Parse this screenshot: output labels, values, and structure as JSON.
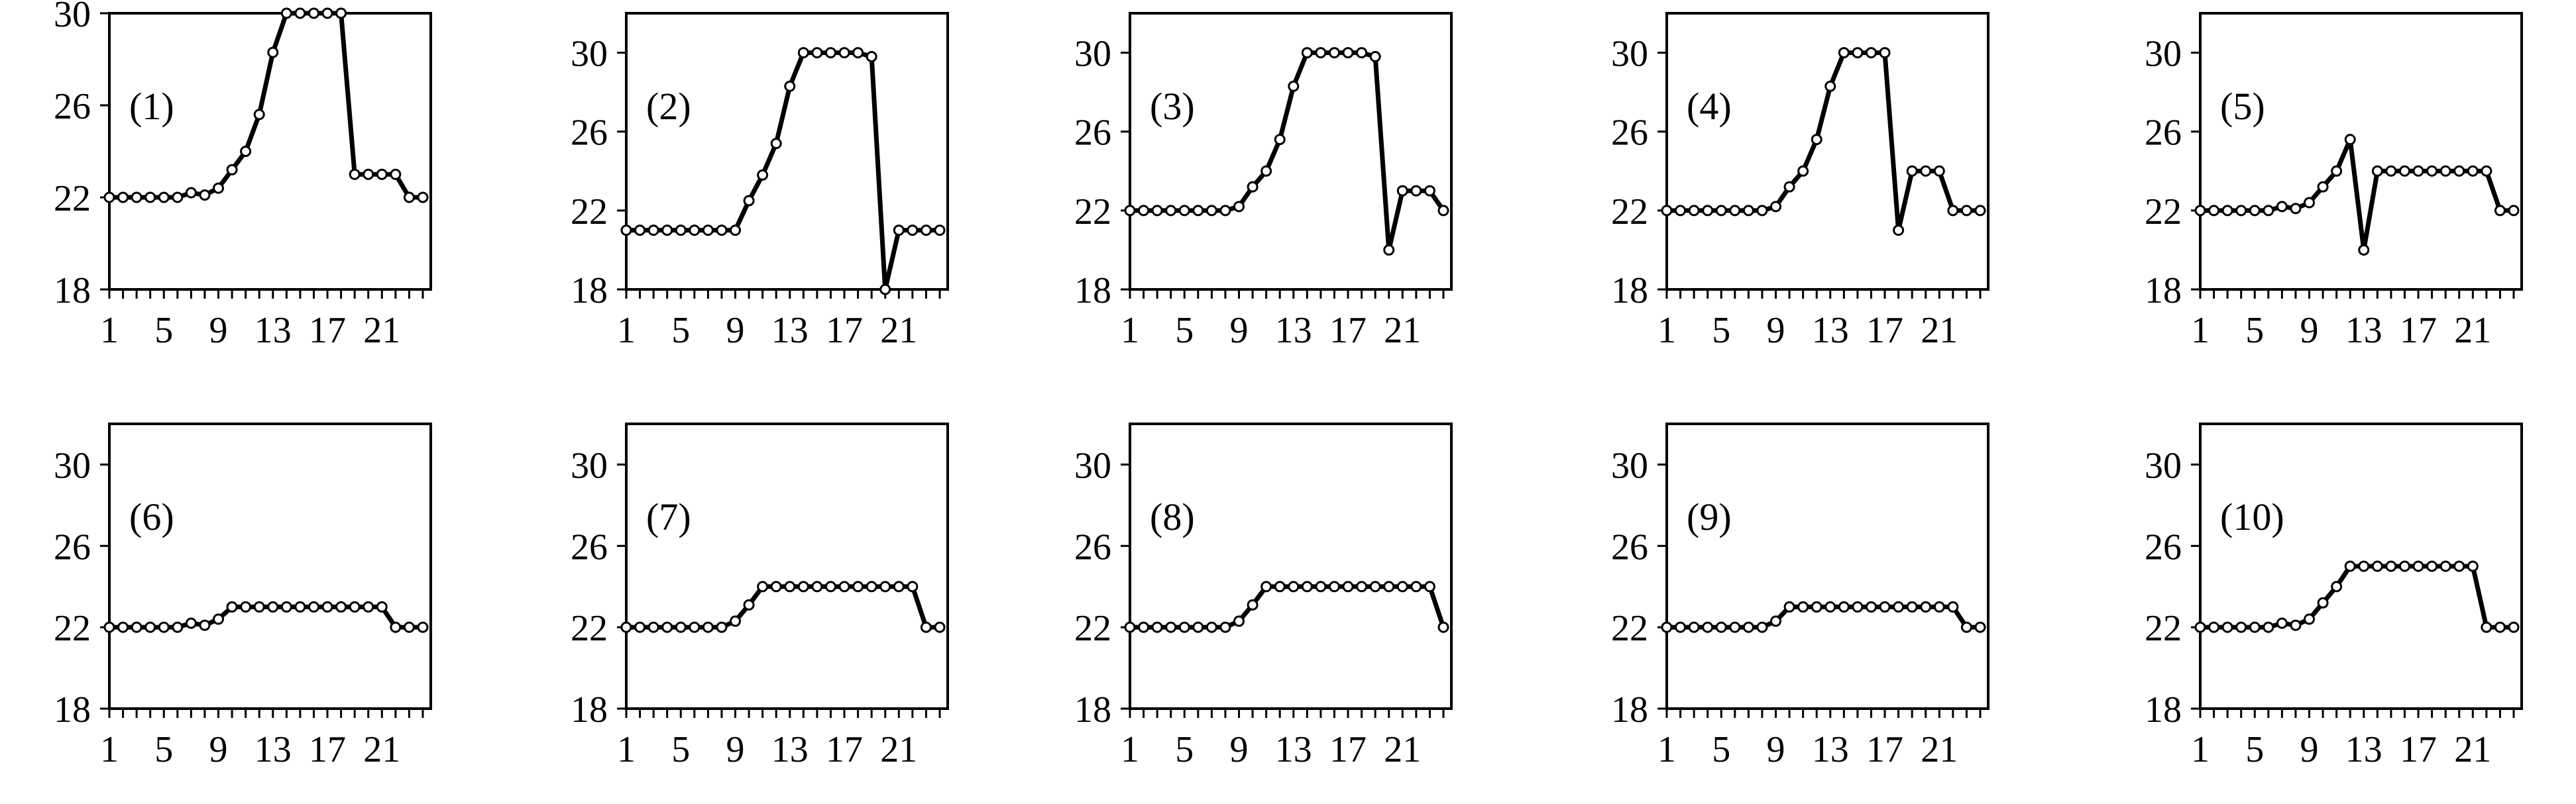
{
  "chart_data": [
    {
      "type": "line",
      "panel_label": "(1)",
      "x": [
        1,
        2,
        3,
        4,
        5,
        6,
        7,
        8,
        9,
        10,
        11,
        12,
        13,
        14,
        15,
        16,
        17,
        18,
        19,
        20,
        21,
        22,
        23,
        24
      ],
      "series": [
        {
          "values": [
            22,
            22,
            22,
            22,
            22,
            22,
            22.2,
            22.1,
            22.4,
            23.2,
            24,
            25.6,
            28.3,
            30,
            30,
            30,
            30,
            30,
            23,
            23,
            23,
            23,
            22,
            22
          ]
        }
      ],
      "ylim": [
        18,
        30
      ],
      "yticks": [
        18,
        22,
        26,
        30
      ],
      "xticks": [
        1,
        5,
        9,
        13,
        17,
        21
      ],
      "xlim": [
        1,
        24
      ]
    },
    {
      "type": "line",
      "panel_label": "(2)",
      "x": [
        1,
        2,
        3,
        4,
        5,
        6,
        7,
        8,
        9,
        10,
        11,
        12,
        13,
        14,
        15,
        16,
        17,
        18,
        19,
        20,
        21,
        22,
        23,
        24
      ],
      "series": [
        {
          "values": [
            21,
            21,
            21,
            21,
            21,
            21,
            21,
            21,
            21,
            22.5,
            23.8,
            25.4,
            28.3,
            30,
            30,
            30,
            30,
            30,
            29.8,
            18,
            21,
            21,
            21,
            21
          ]
        }
      ],
      "ylim": [
        18,
        32
      ],
      "yticks": [
        18,
        22,
        26,
        30
      ],
      "xticks": [
        1,
        5,
        9,
        13,
        17,
        21
      ],
      "xlim": [
        1,
        24
      ]
    },
    {
      "type": "line",
      "panel_label": "(3)",
      "x": [
        1,
        2,
        3,
        4,
        5,
        6,
        7,
        8,
        9,
        10,
        11,
        12,
        13,
        14,
        15,
        16,
        17,
        18,
        19,
        20,
        21,
        22,
        23,
        24
      ],
      "series": [
        {
          "values": [
            22,
            22,
            22,
            22,
            22,
            22,
            22,
            22,
            22.2,
            23.2,
            24,
            25.6,
            28.3,
            30,
            30,
            30,
            30,
            30,
            29.8,
            20,
            23,
            23,
            23,
            22
          ]
        }
      ],
      "ylim": [
        18,
        32
      ],
      "yticks": [
        18,
        22,
        26,
        30
      ],
      "xticks": [
        1,
        5,
        9,
        13,
        17,
        21
      ],
      "xlim": [
        1,
        24
      ]
    },
    {
      "type": "line",
      "panel_label": "(4)",
      "x": [
        1,
        2,
        3,
        4,
        5,
        6,
        7,
        8,
        9,
        10,
        11,
        12,
        13,
        14,
        15,
        16,
        17,
        18,
        19,
        20,
        21,
        22,
        23,
        24
      ],
      "series": [
        {
          "values": [
            22,
            22,
            22,
            22,
            22,
            22,
            22,
            22,
            22.2,
            23.2,
            24,
            25.6,
            28.3,
            30,
            30,
            30,
            30,
            21,
            24,
            24,
            24,
            22,
            22,
            22
          ]
        }
      ],
      "ylim": [
        18,
        32
      ],
      "yticks": [
        18,
        22,
        26,
        30
      ],
      "xticks": [
        1,
        5,
        9,
        13,
        17,
        21
      ],
      "xlim": [
        1,
        24
      ]
    },
    {
      "type": "line",
      "panel_label": "(5)",
      "x": [
        1,
        2,
        3,
        4,
        5,
        6,
        7,
        8,
        9,
        10,
        11,
        12,
        13,
        14,
        15,
        16,
        17,
        18,
        19,
        20,
        21,
        22,
        23,
        24
      ],
      "series": [
        {
          "values": [
            22,
            22,
            22,
            22,
            22,
            22,
            22.2,
            22.1,
            22.4,
            23.2,
            24,
            25.6,
            20,
            24,
            24,
            24,
            24,
            24,
            24,
            24,
            24,
            24,
            22,
            22
          ]
        }
      ],
      "ylim": [
        18,
        32
      ],
      "yticks": [
        18,
        22,
        26,
        30
      ],
      "xticks": [
        1,
        5,
        9,
        13,
        17,
        21
      ],
      "xlim": [
        1,
        24
      ]
    },
    {
      "type": "line",
      "panel_label": "(6)",
      "x": [
        1,
        2,
        3,
        4,
        5,
        6,
        7,
        8,
        9,
        10,
        11,
        12,
        13,
        14,
        15,
        16,
        17,
        18,
        19,
        20,
        21,
        22,
        23,
        24
      ],
      "series": [
        {
          "values": [
            22,
            22,
            22,
            22,
            22,
            22,
            22.2,
            22.1,
            22.4,
            23,
            23,
            23,
            23,
            23,
            23,
            23,
            23,
            23,
            23,
            23,
            23,
            22,
            22,
            22
          ]
        }
      ],
      "ylim": [
        18,
        32
      ],
      "yticks": [
        18,
        22,
        26,
        30
      ],
      "xticks": [
        1,
        5,
        9,
        13,
        17,
        21
      ],
      "xlim": [
        1,
        24
      ]
    },
    {
      "type": "line",
      "panel_label": "(7)",
      "x": [
        1,
        2,
        3,
        4,
        5,
        6,
        7,
        8,
        9,
        10,
        11,
        12,
        13,
        14,
        15,
        16,
        17,
        18,
        19,
        20,
        21,
        22,
        23,
        24
      ],
      "series": [
        {
          "values": [
            22,
            22,
            22,
            22,
            22,
            22,
            22,
            22,
            22.3,
            23.1,
            24,
            24,
            24,
            24,
            24,
            24,
            24,
            24,
            24,
            24,
            24,
            24,
            22,
            22
          ]
        }
      ],
      "ylim": [
        18,
        32
      ],
      "yticks": [
        18,
        22,
        26,
        30
      ],
      "xticks": [
        1,
        5,
        9,
        13,
        17,
        21
      ],
      "xlim": [
        1,
        24
      ]
    },
    {
      "type": "line",
      "panel_label": "(8)",
      "x": [
        1,
        2,
        3,
        4,
        5,
        6,
        7,
        8,
        9,
        10,
        11,
        12,
        13,
        14,
        15,
        16,
        17,
        18,
        19,
        20,
        21,
        22,
        23,
        24
      ],
      "series": [
        {
          "values": [
            22,
            22,
            22,
            22,
            22,
            22,
            22,
            22,
            22.3,
            23.1,
            24,
            24,
            24,
            24,
            24,
            24,
            24,
            24,
            24,
            24,
            24,
            24,
            24,
            22
          ]
        }
      ],
      "ylim": [
        18,
        32
      ],
      "yticks": [
        18,
        22,
        26,
        30
      ],
      "xticks": [
        1,
        5,
        9,
        13,
        17,
        21
      ],
      "xlim": [
        1,
        24
      ]
    },
    {
      "type": "line",
      "panel_label": "(9)",
      "x": [
        1,
        2,
        3,
        4,
        5,
        6,
        7,
        8,
        9,
        10,
        11,
        12,
        13,
        14,
        15,
        16,
        17,
        18,
        19,
        20,
        21,
        22,
        23,
        24
      ],
      "series": [
        {
          "values": [
            22,
            22,
            22,
            22,
            22,
            22,
            22,
            22,
            22.3,
            23,
            23,
            23,
            23,
            23,
            23,
            23,
            23,
            23,
            23,
            23,
            23,
            23,
            22,
            22
          ]
        }
      ],
      "ylim": [
        18,
        32
      ],
      "yticks": [
        18,
        22,
        26,
        30
      ],
      "xticks": [
        1,
        5,
        9,
        13,
        17,
        21
      ],
      "xlim": [
        1,
        24
      ]
    },
    {
      "type": "line",
      "panel_label": "(10)",
      "x": [
        1,
        2,
        3,
        4,
        5,
        6,
        7,
        8,
        9,
        10,
        11,
        12,
        13,
        14,
        15,
        16,
        17,
        18,
        19,
        20,
        21,
        22,
        23,
        24
      ],
      "series": [
        {
          "values": [
            22,
            22,
            22,
            22,
            22,
            22,
            22.2,
            22.1,
            22.4,
            23.2,
            24,
            25,
            25,
            25,
            25,
            25,
            25,
            25,
            25,
            25,
            25,
            22,
            22,
            22
          ]
        }
      ],
      "ylim": [
        18,
        32
      ],
      "yticks": [
        18,
        22,
        26,
        30
      ],
      "xticks": [
        1,
        5,
        9,
        13,
        17,
        21
      ],
      "xlim": [
        1,
        24
      ]
    }
  ]
}
